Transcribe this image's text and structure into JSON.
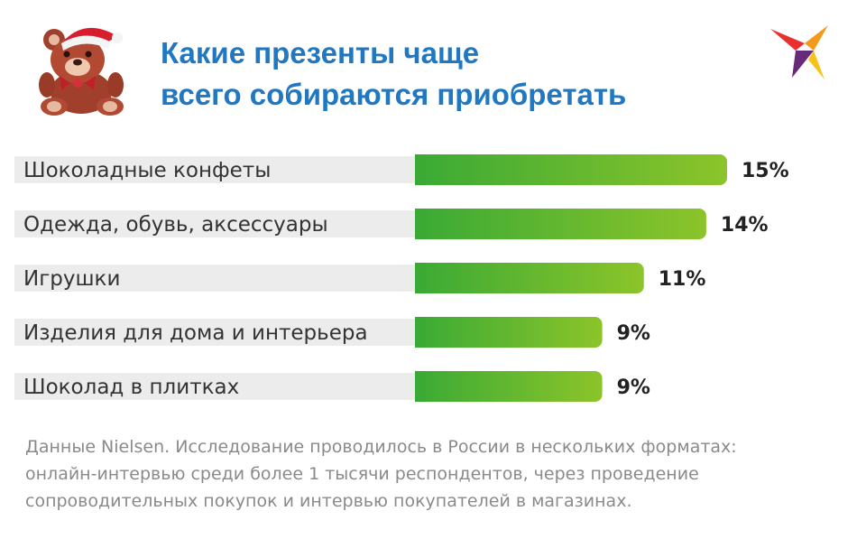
{
  "header": {
    "title_line1": "Какие презенты чаще",
    "title_line2": "всего собираются приобретать"
  },
  "icons": {
    "bear": "teddy-bear-santa-hat-icon",
    "logo": "swallow-logo-icon"
  },
  "colors": {
    "title": "#1f78c1",
    "bar_start": "#3aaa35",
    "bar_end": "#8cc42a",
    "label_band": "#ececec",
    "value_text": "#222222",
    "source_text": "#8a8a8a"
  },
  "chart_data": {
    "type": "bar",
    "orientation": "horizontal",
    "categories": [
      "Шоколадные конфеты",
      "Одежда, обувь, аксессуары",
      "Игрушки",
      "Изделия для дома и интерьера",
      "Шоколад в плитках"
    ],
    "values": [
      15,
      14,
      11,
      9,
      9
    ],
    "value_labels": [
      "15%",
      "14%",
      "11%",
      "9%",
      "9%"
    ],
    "unit": "%",
    "xlim": [
      0,
      15
    ],
    "grid": false,
    "legend": "none"
  },
  "footer": {
    "source_line1": "Данные Nielsen. Исследование проводилось в России в нескольких форматах:",
    "source_line2": "онлайн-интервью среди более 1 тысячи респондентов, через проведение",
    "source_line3": "сопроводительных покупок и интервью покупателей в магазинах."
  }
}
